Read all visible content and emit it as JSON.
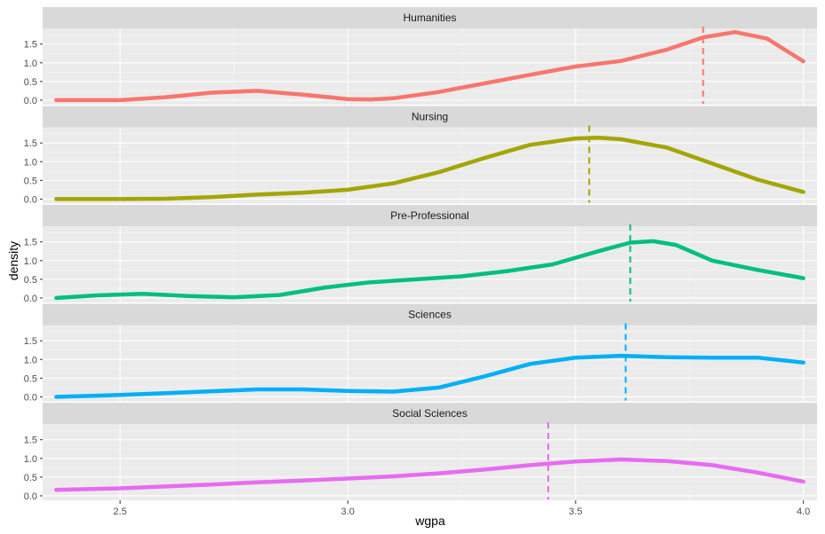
{
  "chart_data": {
    "type": "line",
    "xlabel": "wgpa",
    "ylabel": "density",
    "xlim": [
      2.33,
      4.03
    ],
    "ylim": [
      -0.12,
      1.92
    ],
    "x_ticks": [
      2.5,
      3.0,
      3.5,
      4.0
    ],
    "x_tick_labels": [
      "2.5",
      "3.0",
      "3.5",
      "4.0"
    ],
    "y_ticks": [
      0,
      0.5,
      1,
      1.5
    ],
    "y_tick_labels": [
      "0.0",
      "0.5",
      "1.0",
      "1.5"
    ],
    "grid": true,
    "legend": "none",
    "panels": [
      {
        "name": "Humanities",
        "color": "#F8766D",
        "mean": 3.78,
        "x": [
          2.36,
          2.5,
          2.6,
          2.7,
          2.8,
          2.9,
          3.0,
          3.05,
          3.1,
          3.2,
          3.3,
          3.4,
          3.5,
          3.6,
          3.7,
          3.78,
          3.85,
          3.92,
          4.0
        ],
        "y": [
          0.0,
          0.0,
          0.08,
          0.2,
          0.25,
          0.15,
          0.03,
          0.02,
          0.05,
          0.22,
          0.45,
          0.68,
          0.9,
          1.05,
          1.35,
          1.68,
          1.82,
          1.65,
          1.04
        ]
      },
      {
        "name": "Nursing",
        "color": "#A3A500",
        "mean": 3.53,
        "x": [
          2.36,
          2.5,
          2.6,
          2.7,
          2.8,
          2.9,
          3.0,
          3.1,
          3.2,
          3.3,
          3.4,
          3.5,
          3.55,
          3.6,
          3.7,
          3.8,
          3.9,
          4.0
        ],
        "y": [
          0.0,
          0.0,
          0.01,
          0.05,
          0.12,
          0.17,
          0.25,
          0.42,
          0.72,
          1.1,
          1.45,
          1.62,
          1.64,
          1.6,
          1.38,
          0.95,
          0.52,
          0.19
        ]
      },
      {
        "name": "Pre-Professional",
        "color": "#00BF7D",
        "mean": 3.62,
        "x": [
          2.36,
          2.45,
          2.55,
          2.65,
          2.75,
          2.85,
          2.95,
          3.05,
          3.15,
          3.25,
          3.35,
          3.45,
          3.55,
          3.62,
          3.67,
          3.72,
          3.8,
          3.9,
          4.0
        ],
        "y": [
          0.0,
          0.07,
          0.11,
          0.05,
          0.02,
          0.08,
          0.28,
          0.42,
          0.5,
          0.58,
          0.72,
          0.9,
          1.25,
          1.48,
          1.52,
          1.42,
          1.0,
          0.75,
          0.53
        ]
      },
      {
        "name": "Sciences",
        "color": "#00B0F6",
        "mean": 3.61,
        "x": [
          2.36,
          2.5,
          2.6,
          2.7,
          2.8,
          2.9,
          3.0,
          3.1,
          3.2,
          3.3,
          3.4,
          3.5,
          3.6,
          3.7,
          3.8,
          3.9,
          4.0
        ],
        "y": [
          0.0,
          0.05,
          0.1,
          0.15,
          0.2,
          0.2,
          0.16,
          0.14,
          0.25,
          0.55,
          0.88,
          1.05,
          1.1,
          1.06,
          1.05,
          1.05,
          0.92
        ]
      },
      {
        "name": "Social Sciences",
        "color": "#E76BF3",
        "mean": 3.44,
        "x": [
          2.36,
          2.5,
          2.6,
          2.7,
          2.8,
          2.9,
          3.0,
          3.1,
          3.2,
          3.3,
          3.4,
          3.5,
          3.6,
          3.7,
          3.8,
          3.9,
          4.0
        ],
        "y": [
          0.16,
          0.2,
          0.25,
          0.3,
          0.36,
          0.41,
          0.46,
          0.52,
          0.6,
          0.7,
          0.82,
          0.92,
          0.97,
          0.93,
          0.82,
          0.62,
          0.38
        ]
      }
    ]
  }
}
